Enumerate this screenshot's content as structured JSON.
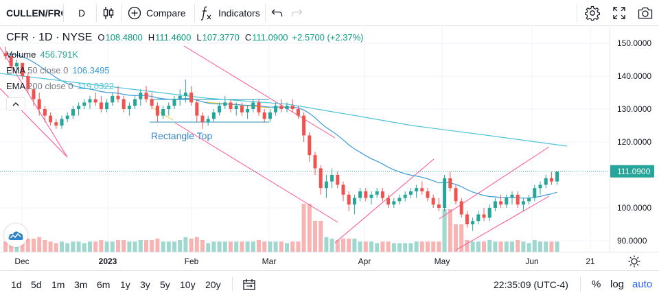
{
  "toolbar": {
    "symbol": "CULLEN/FRC",
    "interval": "D",
    "compare_label": "Compare",
    "indicators_label": "Indicators",
    "icons": [
      "candles-icon",
      "plus-circle-icon",
      "fx-icon",
      "undo-icon",
      "redo-icon",
      "gear-icon",
      "fullscreen-icon",
      "camera-icon"
    ]
  },
  "legend": {
    "symbol": "CFR · 1D · NYSE",
    "open_label": "O",
    "open": "108.4800",
    "high_label": "H",
    "high": "111.4600",
    "low_label": "L",
    "low": "107.3770",
    "close_label": "C",
    "close": "111.0900",
    "change": "+2.5700 (+2.37%)",
    "volume_label": "Volume",
    "volume_value": "456.791K",
    "ema50_label": "EMA",
    "ema50_params": "50 close 0",
    "ema50_value": "106.3495",
    "ema200_label": "EMA",
    "ema200_params": "200 close 0",
    "ema200_value": "119.0322"
  },
  "drawing": {
    "rectangle_label": "Rectangle Top"
  },
  "price_axis": {
    "ticks": [
      "150.0000",
      "140.0000",
      "130.0000",
      "120.0000",
      "100.0000",
      "90.0000"
    ],
    "last_price": "111.0900"
  },
  "time_axis": {
    "ticks": [
      {
        "label": "Dec",
        "bold": false
      },
      {
        "label": "2023",
        "bold": true
      },
      {
        "label": "Feb",
        "bold": false
      },
      {
        "label": "Mar",
        "bold": false
      },
      {
        "label": "Apr",
        "bold": false
      },
      {
        "label": "May",
        "bold": false
      },
      {
        "label": "Jun",
        "bold": false
      },
      {
        "label": "21",
        "bold": false
      }
    ]
  },
  "bottom_bar": {
    "ranges": [
      "1d",
      "5d",
      "1m",
      "3m",
      "6m",
      "1y",
      "3y",
      "5y",
      "10y",
      "20y"
    ],
    "clock": "22:35:09 (UTC-4)",
    "percent_label": "%",
    "log_label": "log",
    "auto_label": "auto"
  },
  "colors": {
    "up": "#26a69a",
    "down": "#ef5350",
    "ema50": "#3a9ad9",
    "ema200": "#4fc3d9",
    "trendline": "#ff4f93",
    "rectangle": "#2196b8",
    "accent": "#2962ff"
  },
  "chart_data": {
    "type": "candlestick",
    "symbol": "CFR",
    "interval": "1D",
    "y_range": [
      86,
      155
    ],
    "x_labels": [
      "Dec",
      "2023",
      "Feb",
      "Mar",
      "Apr",
      "May",
      "Jun",
      "21"
    ],
    "note_values_estimated_from_axis": true,
    "series": [
      {
        "name": "price",
        "values": [
          [
            147,
            149,
            145,
            146
          ],
          [
            146,
            147,
            142,
            143
          ],
          [
            143,
            145,
            141,
            144
          ],
          [
            144,
            144,
            139,
            140
          ],
          [
            140,
            141,
            135,
            136
          ],
          [
            136,
            137,
            131,
            133
          ],
          [
            133,
            135,
            128,
            130
          ],
          [
            130,
            131,
            126,
            128
          ],
          [
            128,
            129,
            125,
            126
          ],
          [
            126,
            127,
            124,
            125
          ],
          [
            125,
            128,
            124,
            127
          ],
          [
            127,
            129,
            126,
            128
          ],
          [
            128,
            131,
            127,
            130
          ],
          [
            130,
            132,
            128,
            131
          ],
          [
            131,
            133,
            130,
            132
          ],
          [
            132,
            134,
            130,
            133
          ],
          [
            133,
            135,
            131,
            132
          ],
          [
            132,
            134,
            129,
            130
          ],
          [
            130,
            133,
            129,
            132
          ],
          [
            132,
            135,
            131,
            134
          ],
          [
            134,
            137,
            132,
            133
          ],
          [
            133,
            134,
            129,
            130
          ],
          [
            130,
            132,
            128,
            131
          ],
          [
            131,
            134,
            130,
            133
          ],
          [
            133,
            136,
            131,
            135
          ],
          [
            135,
            137,
            132,
            133
          ],
          [
            133,
            135,
            130,
            131
          ],
          [
            131,
            132,
            126,
            128
          ],
          [
            128,
            131,
            127,
            130
          ],
          [
            130,
            132,
            128,
            131
          ],
          [
            131,
            134,
            130,
            133
          ],
          [
            133,
            136,
            131,
            134
          ],
          [
            134,
            139,
            132,
            135
          ],
          [
            135,
            137,
            131,
            132
          ],
          [
            132,
            133,
            126,
            128
          ],
          [
            128,
            129,
            124,
            126
          ],
          [
            126,
            128,
            125,
            127
          ],
          [
            127,
            130,
            126,
            129
          ],
          [
            129,
            132,
            128,
            131
          ],
          [
            131,
            134,
            130,
            132
          ],
          [
            132,
            133,
            129,
            130
          ],
          [
            130,
            132,
            128,
            131
          ],
          [
            131,
            132,
            128,
            129
          ],
          [
            129,
            131,
            127,
            130
          ],
          [
            130,
            133,
            129,
            132
          ],
          [
            132,
            133,
            128,
            129
          ],
          [
            129,
            130,
            126,
            127
          ],
          [
            127,
            130,
            126,
            129
          ],
          [
            129,
            132,
            128,
            131
          ],
          [
            131,
            133,
            129,
            130
          ],
          [
            130,
            132,
            129,
            131
          ],
          [
            131,
            133,
            129,
            130
          ],
          [
            130,
            131,
            127,
            128
          ],
          [
            128,
            129,
            120,
            122
          ],
          [
            122,
            123,
            114,
            116
          ],
          [
            116,
            117,
            110,
            112
          ],
          [
            112,
            113,
            104,
            106
          ],
          [
            106,
            110,
            103,
            108
          ],
          [
            108,
            112,
            106,
            110
          ],
          [
            110,
            111,
            106,
            107
          ],
          [
            107,
            108,
            102,
            104
          ],
          [
            104,
            105,
            99,
            101
          ],
          [
            101,
            104,
            98,
            103
          ],
          [
            103,
            106,
            102,
            105
          ],
          [
            105,
            106,
            102,
            103
          ],
          [
            103,
            105,
            101,
            104
          ],
          [
            104,
            106,
            103,
            105
          ],
          [
            105,
            106,
            102,
            103
          ],
          [
            103,
            104,
            100,
            101
          ],
          [
            101,
            103,
            100,
            102
          ],
          [
            102,
            104,
            101,
            103
          ],
          [
            103,
            105,
            102,
            104
          ],
          [
            104,
            106,
            103,
            105
          ],
          [
            105,
            107,
            103,
            106
          ],
          [
            106,
            108,
            104,
            105
          ],
          [
            105,
            106,
            102,
            103
          ],
          [
            103,
            104,
            100,
            101
          ],
          [
            101,
            103,
            99,
            100
          ],
          [
            100,
            110,
            99,
            109
          ],
          [
            109,
            111,
            105,
            106
          ],
          [
            106,
            107,
            101,
            102
          ],
          [
            102,
            103,
            97,
            98
          ],
          [
            98,
            99,
            94,
            95
          ],
          [
            95,
            97,
            93,
            96
          ],
          [
            96,
            99,
            95,
            98
          ],
          [
            98,
            100,
            96,
            97
          ],
          [
            97,
            101,
            96,
            100
          ],
          [
            100,
            103,
            99,
            102
          ],
          [
            102,
            104,
            100,
            101
          ],
          [
            101,
            104,
            100,
            103
          ],
          [
            103,
            105,
            101,
            104
          ],
          [
            104,
            105,
            100,
            101
          ],
          [
            101,
            103,
            99,
            102
          ],
          [
            102,
            104,
            101,
            103
          ],
          [
            103,
            107,
            102,
            106
          ],
          [
            106,
            108,
            104,
            107
          ],
          [
            107,
            110,
            106,
            109
          ],
          [
            109,
            111,
            107,
            108
          ],
          [
            108,
            111,
            107,
            111
          ]
        ]
      },
      {
        "name": "EMA 50 close 0",
        "value_last": 106.3495
      },
      {
        "name": "EMA 200 close 0",
        "value_last": 119.0322
      }
    ]
  }
}
